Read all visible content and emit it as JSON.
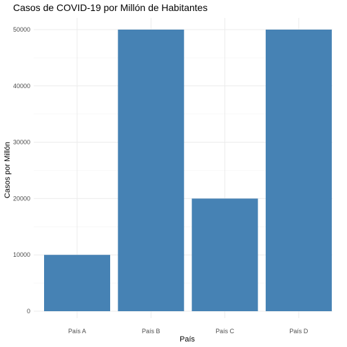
{
  "chart_data": {
    "type": "bar",
    "title": "Casos de COVID-19 por Millón de Habitantes",
    "xlabel": "País",
    "ylabel": "Casos por Millón",
    "categories": [
      "País A",
      "País B",
      "País C",
      "País D"
    ],
    "values": [
      10000,
      50000,
      20000,
      50000
    ],
    "ylim": [
      0,
      51000
    ],
    "yticks": [
      0,
      10000,
      20000,
      30000,
      40000,
      50000
    ],
    "grid": true,
    "bar_color": "#4682B4"
  }
}
